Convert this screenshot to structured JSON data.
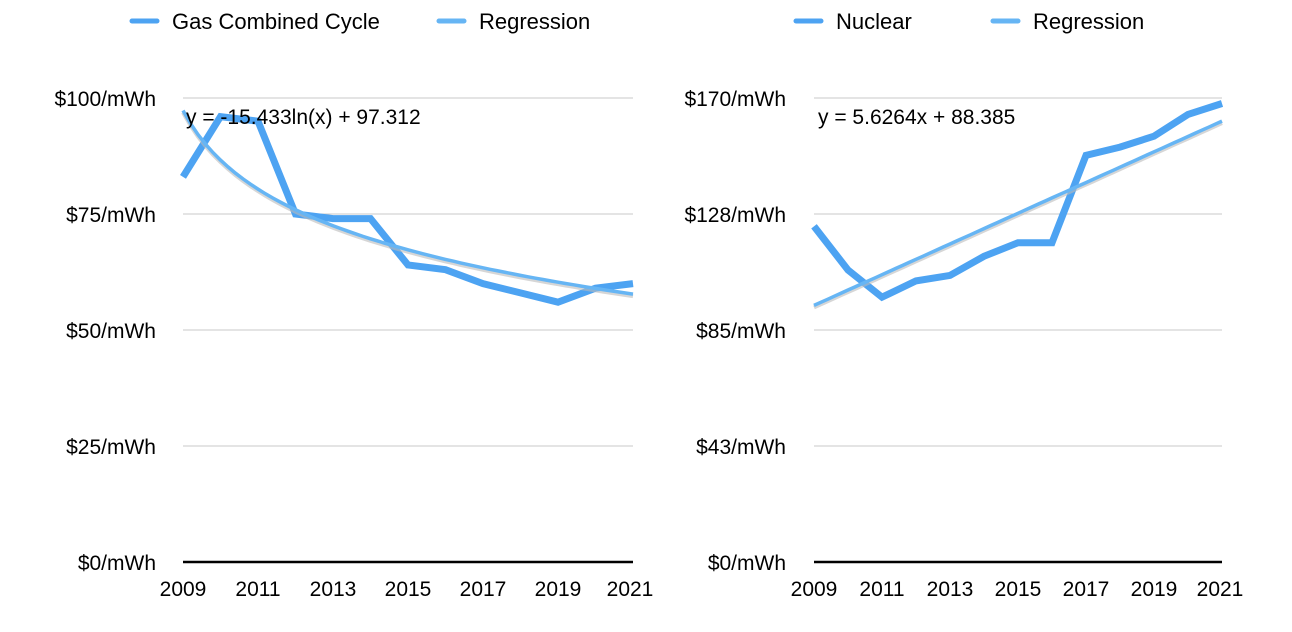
{
  "chart_data": [
    {
      "type": "line",
      "x": [
        2009,
        2010,
        2011,
        2012,
        2013,
        2014,
        2015,
        2016,
        2017,
        2018,
        2019,
        2020,
        2021
      ],
      "x_tick_labels": [
        "2009",
        "2011",
        "2013",
        "2015",
        "2017",
        "2019",
        "2021"
      ],
      "y_tick_labels": [
        "$100/mWh",
        "$75/mWh",
        "$50/mWh",
        "$25/mWh",
        "$0/mWh"
      ],
      "ylim": [
        0,
        100
      ],
      "grid": true,
      "legend_position": "top",
      "series": [
        {
          "name": "Gas Combined Cycle",
          "color": "#4da3f2",
          "values": [
            83,
            96,
            95,
            75,
            74,
            74,
            64,
            63,
            60,
            58,
            56,
            59,
            60
          ]
        },
        {
          "name": "Regression",
          "color": "#66b5f4",
          "trend": "logarithmic",
          "equation": "y = -15.433ln(x) + 97.312"
        }
      ]
    },
    {
      "type": "line",
      "x": [
        2009,
        2010,
        2011,
        2012,
        2013,
        2014,
        2015,
        2016,
        2017,
        2018,
        2019,
        2020,
        2021
      ],
      "x_tick_labels": [
        "2009",
        "2011",
        "2013",
        "2015",
        "2017",
        "2019",
        "2021"
      ],
      "y_tick_labels": [
        "$170/mWh",
        "$128/mWh",
        "$85/mWh",
        "$43/mWh",
        "$0/mWh"
      ],
      "ylim": [
        0,
        170
      ],
      "grid": true,
      "legend_position": "top",
      "series": [
        {
          "name": "Nuclear",
          "color": "#4da3f2",
          "values": [
            123,
            107,
            97,
            103,
            105,
            112,
            117,
            117,
            149,
            152,
            156,
            164,
            168
          ]
        },
        {
          "name": "Regression",
          "color": "#66b5f4",
          "trend": "linear",
          "equation": "y = 5.6264x + 88.385"
        }
      ]
    }
  ]
}
